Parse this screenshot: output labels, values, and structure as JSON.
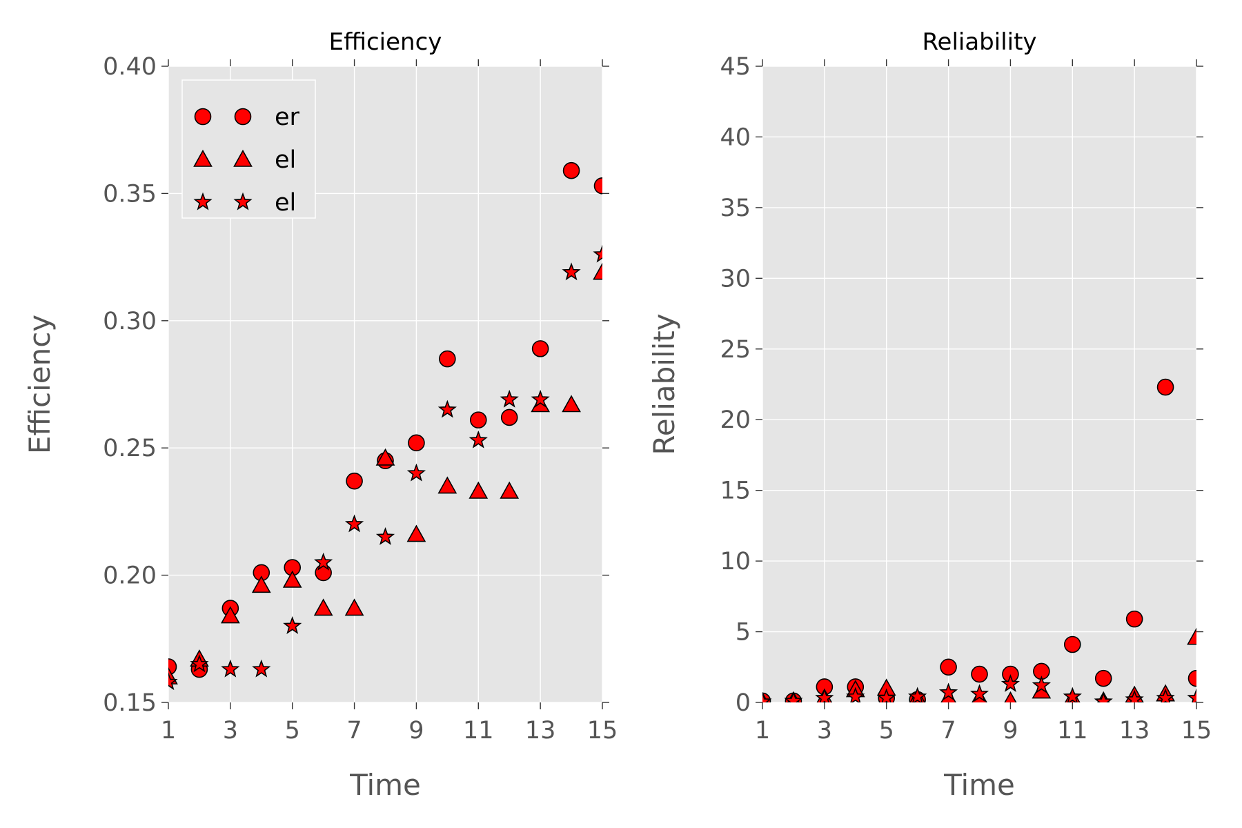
{
  "chart_data": [
    {
      "type": "scatter",
      "title": "Efficiency",
      "xlabel": "Time",
      "ylabel": "Efficiency",
      "xlim": [
        1,
        15
      ],
      "ylim": [
        0.15,
        0.4
      ],
      "xticks": [
        1,
        3,
        5,
        7,
        9,
        11,
        13,
        15
      ],
      "yticks": [
        "0.15",
        "0.20",
        "0.25",
        "0.30",
        "0.35",
        "0.40"
      ],
      "grid": true,
      "legend_position": "top-left",
      "marker_color": "#ff0000",
      "background_color": "#e5e5e5",
      "x": [
        1,
        2,
        3,
        4,
        5,
        6,
        7,
        8,
        9,
        10,
        11,
        12,
        13,
        14,
        15
      ],
      "series": [
        {
          "name": "er",
          "marker": "circle",
          "values": [
            0.164,
            0.163,
            0.187,
            0.201,
            0.203,
            0.201,
            0.237,
            0.245,
            0.252,
            0.285,
            0.261,
            0.262,
            0.289,
            0.359,
            0.353
          ]
        },
        {
          "name": "el",
          "marker": "triangle",
          "values": [
            0.16,
            0.167,
            0.184,
            0.196,
            0.198,
            0.187,
            0.187,
            0.246,
            0.216,
            0.235,
            0.233,
            0.233,
            0.267,
            0.267,
            0.319
          ]
        },
        {
          "name": "el",
          "marker": "star",
          "values": [
            0.158,
            0.165,
            0.163,
            0.163,
            0.18,
            0.205,
            0.22,
            0.215,
            0.24,
            0.265,
            0.253,
            0.269,
            0.269,
            0.319,
            0.326
          ]
        }
      ]
    },
    {
      "type": "scatter",
      "title": "Reliability",
      "xlabel": "Time",
      "ylabel": "Reliability",
      "xlim": [
        1,
        15
      ],
      "ylim": [
        0,
        45
      ],
      "xticks": [
        1,
        3,
        5,
        7,
        9,
        11,
        13,
        15
      ],
      "yticks": [
        "0",
        "5",
        "10",
        "15",
        "20",
        "25",
        "30",
        "35",
        "40",
        "45"
      ],
      "grid": true,
      "marker_color": "#ff0000",
      "background_color": "#e5e5e5",
      "x": [
        1,
        2,
        3,
        4,
        5,
        6,
        7,
        8,
        9,
        10,
        11,
        12,
        13,
        14,
        15
      ],
      "series": [
        {
          "name": "er",
          "marker": "circle",
          "values": [
            0.1,
            0.1,
            1.1,
            1.1,
            0.3,
            0.2,
            2.5,
            2.0,
            2.0,
            2.2,
            4.1,
            1.7,
            5.9,
            22.3,
            1.7
          ]
        },
        {
          "name": "el",
          "marker": "triangle",
          "values": [
            0.05,
            0.1,
            0.3,
            0.9,
            1.0,
            0.3,
            0.3,
            0.3,
            0.1,
            0.8,
            0.3,
            0.1,
            0.5,
            0.6,
            4.6
          ]
        },
        {
          "name": "el",
          "marker": "star",
          "values": [
            0.05,
            0.1,
            0.3,
            0.4,
            0.3,
            0.4,
            0.7,
            0.6,
            1.3,
            1.2,
            0.4,
            0.05,
            0.2,
            0.3,
            0.3
          ]
        }
      ]
    }
  ]
}
